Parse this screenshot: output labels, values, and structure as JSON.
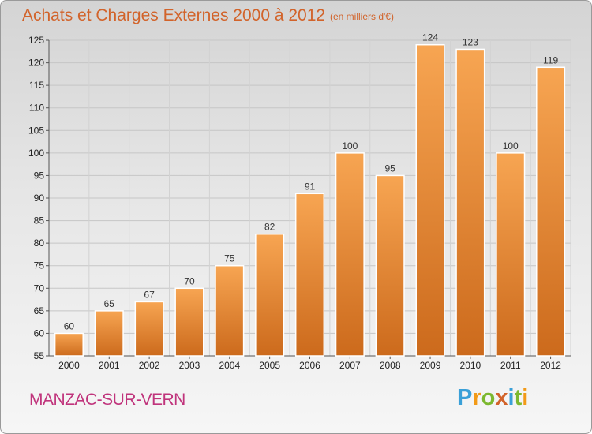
{
  "header": {
    "title": "Achats et Charges Externes 2000 à 2012",
    "unit": "(en milliers d'€)"
  },
  "footer": {
    "place": "MANZAC-SUR-VERN",
    "logo": [
      "P",
      "r",
      "o",
      "x",
      "i",
      "t",
      "i"
    ]
  },
  "colors": {
    "bar_light": "#f7a552",
    "bar_dark": "#cc6a1c",
    "title": "#d2632a",
    "place": "#c0347c"
  },
  "chart_data": {
    "type": "bar",
    "title": "Achats et Charges Externes 2000 à 2012",
    "subtitle": "(en milliers d'€)",
    "categories": [
      "2000",
      "2001",
      "2002",
      "2003",
      "2004",
      "2005",
      "2006",
      "2007",
      "2008",
      "2009",
      "2010",
      "2011",
      "2012"
    ],
    "values": [
      60,
      65,
      67,
      70,
      75,
      82,
      91,
      100,
      95,
      124,
      123,
      100,
      119
    ],
    "ylim": [
      55,
      125
    ],
    "yticks": [
      55,
      60,
      65,
      70,
      75,
      80,
      85,
      90,
      95,
      100,
      105,
      110,
      115,
      120,
      125
    ],
    "grid": true,
    "data_labels": true
  }
}
